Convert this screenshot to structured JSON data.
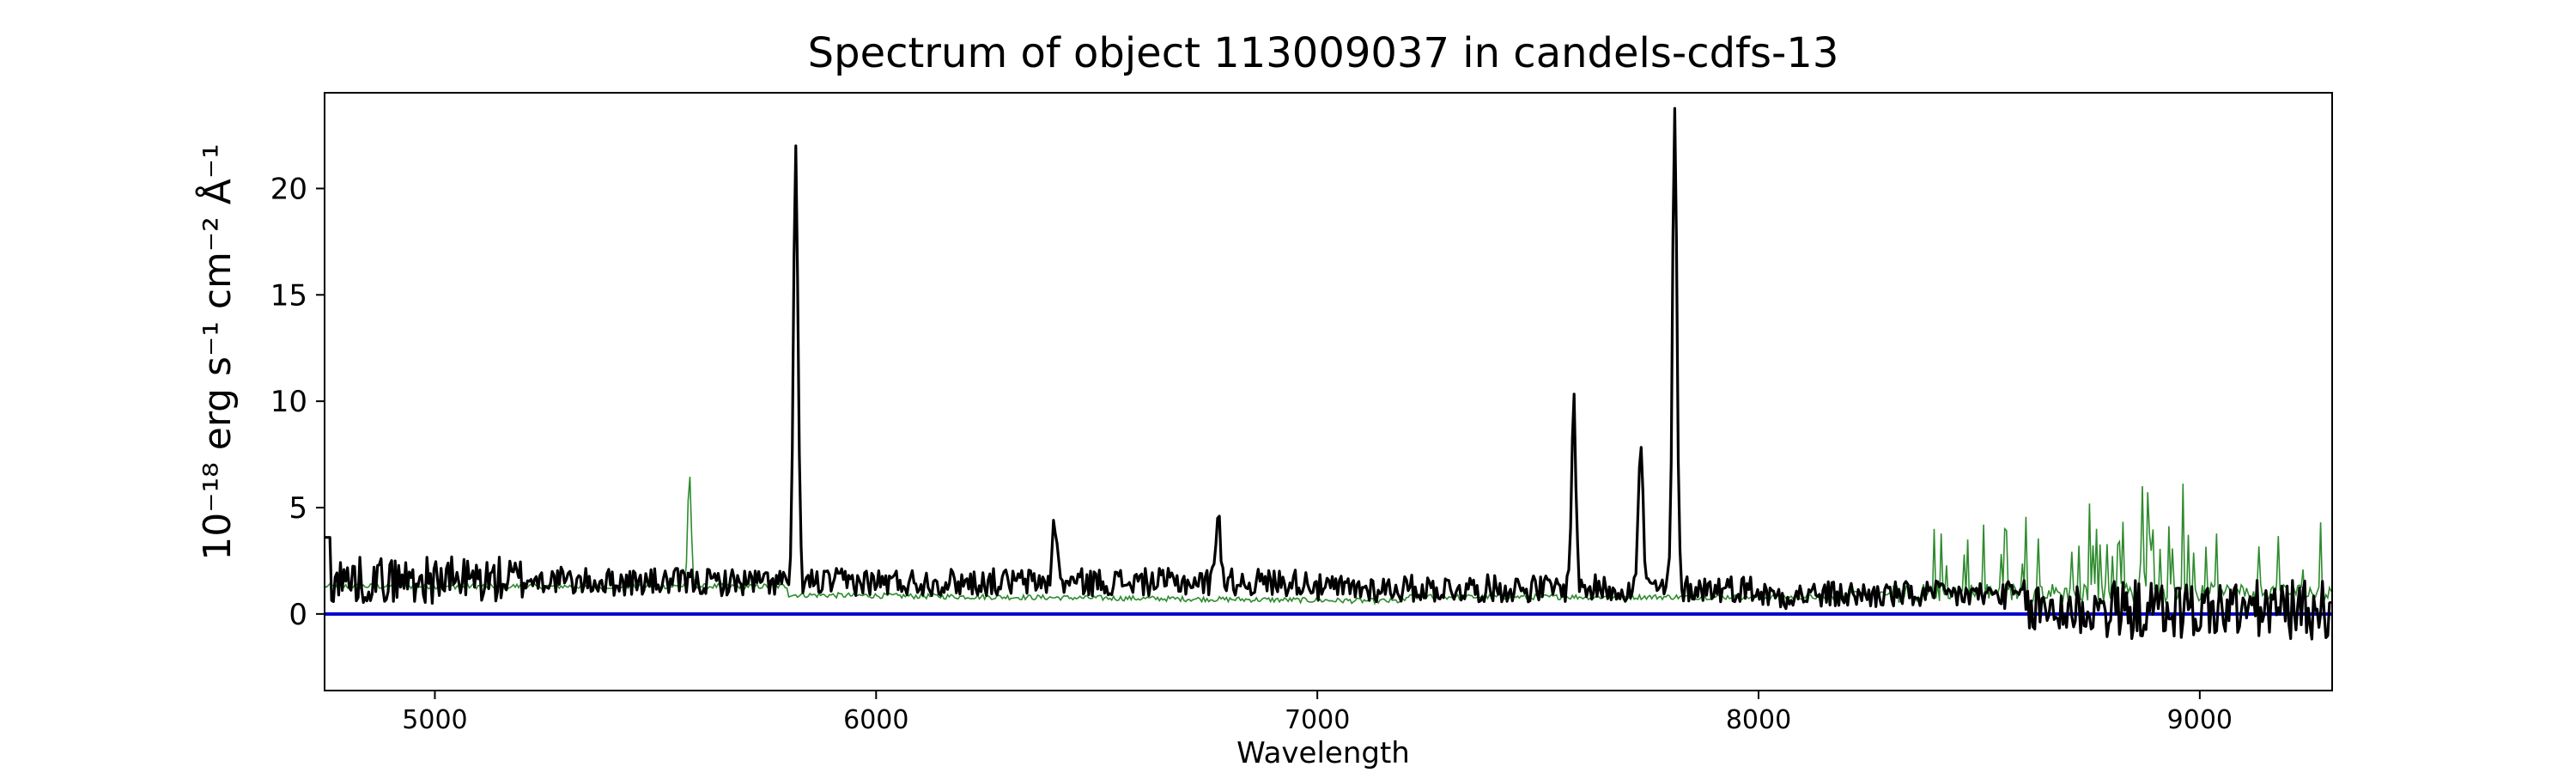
{
  "chart_data": {
    "type": "line",
    "title": "Spectrum of object 113009037 in candels-cdfs-13",
    "xlabel": "Wavelength",
    "ylabel": "10⁻¹⁸ erg s⁻¹ cm⁻² Å⁻¹",
    "xlim": [
      4750,
      9300
    ],
    "ylim": [
      -3.6,
      24.5
    ],
    "xticks": [
      5000,
      6000,
      7000,
      8000,
      9000
    ],
    "yticks": [
      0,
      5,
      10,
      15,
      20
    ],
    "grid": false,
    "colors": {
      "flux": "#000000",
      "noise": "#2e8b2e",
      "zero": "#0000cc"
    },
    "series": [
      {
        "role": "flux",
        "peaks": [
          {
            "x": 5818,
            "y": 21.4
          },
          {
            "x": 6405,
            "y": 4.1
          },
          {
            "x": 6775,
            "y": 4.9
          },
          {
            "x": 7581,
            "y": 10.0
          },
          {
            "x": 7733,
            "y": 8.3
          },
          {
            "x": 7810,
            "y": 23.4
          }
        ]
      },
      {
        "role": "noise",
        "peaks": [
          {
            "x": 5577,
            "y": 6.4
          }
        ]
      },
      {
        "role": "zero",
        "values": [
          [
            4750,
            0
          ],
          [
            9300,
            0
          ]
        ]
      }
    ]
  }
}
